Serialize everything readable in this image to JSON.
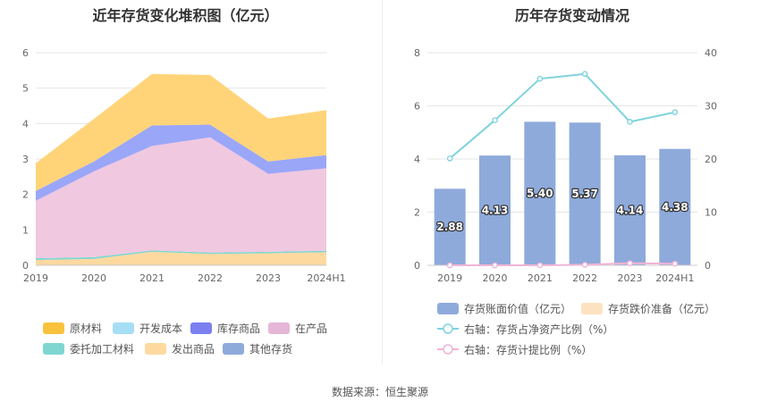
{
  "chart_data": [
    {
      "type": "area",
      "title": "近年存货变化堆积图（亿元）",
      "categories": [
        "2019",
        "2020",
        "2021",
        "2022",
        "2023",
        "2024H1"
      ],
      "ylim": [
        0,
        6
      ],
      "yticks": [
        0,
        1,
        2,
        3,
        4,
        5,
        6
      ],
      "series": [
        {
          "name": "发出商品",
          "color": "#fdd9a0",
          "values": [
            0.15,
            0.18,
            0.38,
            0.32,
            0.34,
            0.37
          ]
        },
        {
          "name": "委托加工材料",
          "color": "#7fd6d0",
          "values": [
            0.05,
            0.05,
            0.04,
            0.04,
            0.04,
            0.04
          ]
        },
        {
          "name": "在产品",
          "color": "#f0c8e0",
          "values": [
            1.62,
            2.42,
            2.95,
            3.25,
            2.2,
            2.33
          ]
        },
        {
          "name": "库存商品",
          "color": "#9aa6f8",
          "values": [
            0.28,
            0.28,
            0.58,
            0.36,
            0.35,
            0.37
          ]
        },
        {
          "name": "原材料",
          "color": "#ffd479",
          "values": [
            0.78,
            1.2,
            1.45,
            1.4,
            1.21,
            1.27
          ]
        },
        {
          "name": "开发成本",
          "color": "#9fdaf2",
          "values": [
            0,
            0,
            0,
            0,
            0,
            0
          ]
        },
        {
          "name": "其他存货",
          "color": "#8eaadb",
          "values": [
            0,
            0,
            0,
            0,
            0,
            0
          ]
        }
      ],
      "legend": [
        {
          "name": "原材料",
          "color": "#f9c23c"
        },
        {
          "name": "开发成本",
          "color": "#a6def5"
        },
        {
          "name": "库存商品",
          "color": "#7b7ff0"
        },
        {
          "name": "在产品",
          "color": "#e6b6d6"
        },
        {
          "name": "委托加工材料",
          "color": "#7fd6d0"
        },
        {
          "name": "发出商品",
          "color": "#fdd9a0"
        },
        {
          "name": "其他存货",
          "color": "#8eaadb"
        }
      ]
    },
    {
      "type": "bar",
      "title": "历年存货变动情况",
      "categories": [
        "2019",
        "2020",
        "2021",
        "2022",
        "2023",
        "2024H1"
      ],
      "ylim": [
        0,
        8
      ],
      "yticks": [
        0,
        2,
        4,
        6,
        8
      ],
      "y2lim": [
        0,
        40
      ],
      "y2ticks": [
        0,
        10,
        20,
        30,
        40
      ],
      "series": [
        {
          "name": "存货账面价值（亿元）",
          "type": "bar",
          "axis": "left",
          "color": "#8eaadb",
          "values": [
            2.88,
            4.13,
            5.4,
            5.37,
            4.14,
            4.38
          ],
          "labels": [
            "2.88",
            "4.13",
            "5.40",
            "5.37",
            "4.14",
            "4.38"
          ]
        },
        {
          "name": "存货跌价准备（亿元）",
          "type": "bar",
          "axis": "left",
          "color": "#fde2c2",
          "values": [
            0,
            0,
            0,
            0,
            0,
            0
          ]
        },
        {
          "name": "右轴：存货占净资产比例（%）",
          "type": "line",
          "axis": "right",
          "color": "#7fd3dc",
          "values": [
            20.1,
            27.3,
            35.1,
            36.0,
            27.0,
            28.8
          ]
        },
        {
          "name": "右轴：存货计提比例（%）",
          "type": "line",
          "axis": "right",
          "color": "#f0b4d6",
          "values": [
            0,
            0,
            0,
            0.1,
            0.4,
            0.3
          ]
        }
      ]
    }
  ],
  "source": "数据来源：恒生聚源"
}
